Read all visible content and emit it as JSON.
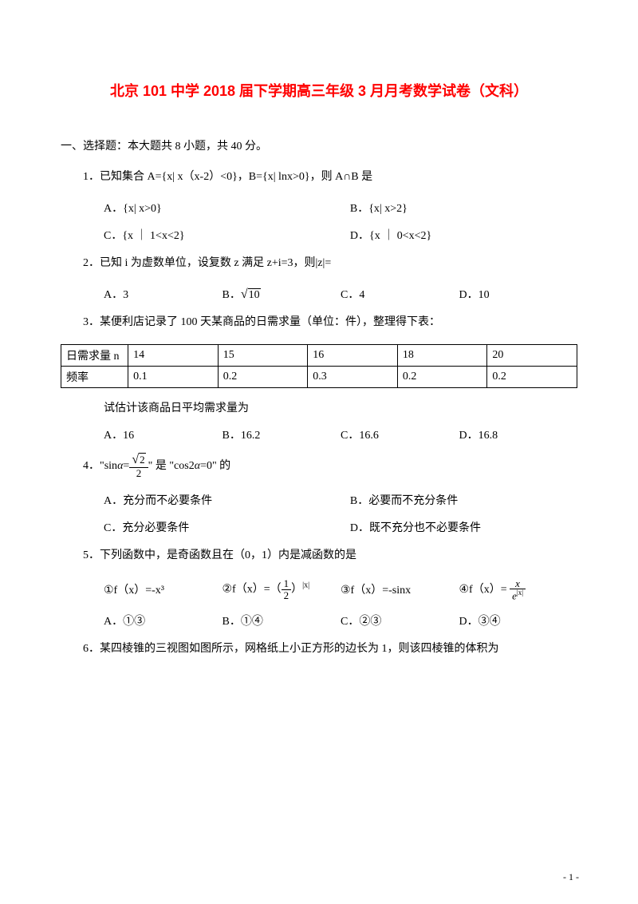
{
  "title": "北京 101 中学 2018 届下学期高三年级 3 月月考数学试卷（文科）",
  "section": "一、选择题：本大题共 8 小题，共 40 分。",
  "q1": {
    "stem": "1．已知集合 A={x| x（x-2）<0}，B={x| lnx>0}，则 A∩B 是",
    "A": "A．{x| x>0}",
    "B": "B．{x| x>2}",
    "C": "C．{x ｜ 1<x<2}",
    "D": "D．{x ｜ 0<x<2}"
  },
  "q2": {
    "stem": "2．已知 i 为虚数单位，设复数 z 满足 z+i=3，则|z|=",
    "A": "A．3",
    "B_pre": "B．",
    "B_rad": "10",
    "C": "C．4",
    "D": "D．10"
  },
  "q3": {
    "stem": "3．某便利店记录了 100 天某商品的日需求量（单位：件），整理得下表：",
    "row1_h": "日需求量 n",
    "row2_h": "频率",
    "cols": [
      "14",
      "15",
      "16",
      "18",
      "20"
    ],
    "freq": [
      "0.1",
      "0.2",
      "0.3",
      "0.2",
      "0.2"
    ],
    "sub": "试估计该商品日平均需求量为",
    "A": "A．16",
    "B": "B．16.2",
    "C": "C．16.6",
    "D": "D．16.8"
  },
  "q4": {
    "pre": "4．\"sin",
    "alpha": "α",
    "eq": " = ",
    "num": "2",
    "den": "2",
    "post": "\" 是 \"cos2",
    "post2": " =0\" 的",
    "A": "A．充分而不必要条件",
    "B": "B．必要而不充分条件",
    "C": "C．充分必要条件",
    "D": "D．既不充分也不必要条件"
  },
  "q5": {
    "stem": "5．下列函数中，是奇函数且在（0，1）内是减函数的是",
    "i1": "①f（x）=-x³",
    "i2_pre": "②f（x）=（",
    "i2_n": "1",
    "i2_d": "2",
    "i2_post": "）",
    "i2_exp": "|x|",
    "i3": "③f（x）=-sinx",
    "i4_pre": "④f（x）= ",
    "i4_n": "x",
    "i4_d_pre": "e",
    "i4_d_exp": "|x|",
    "A": "A．①③",
    "B": "B．①④",
    "C": "C．②③",
    "D": "D．③④"
  },
  "q6": {
    "stem": "6．某四棱锥的三视图如图所示，网格纸上小正方形的边长为 1，则该四棱锥的体积为"
  },
  "pagenum": "- 1 -"
}
